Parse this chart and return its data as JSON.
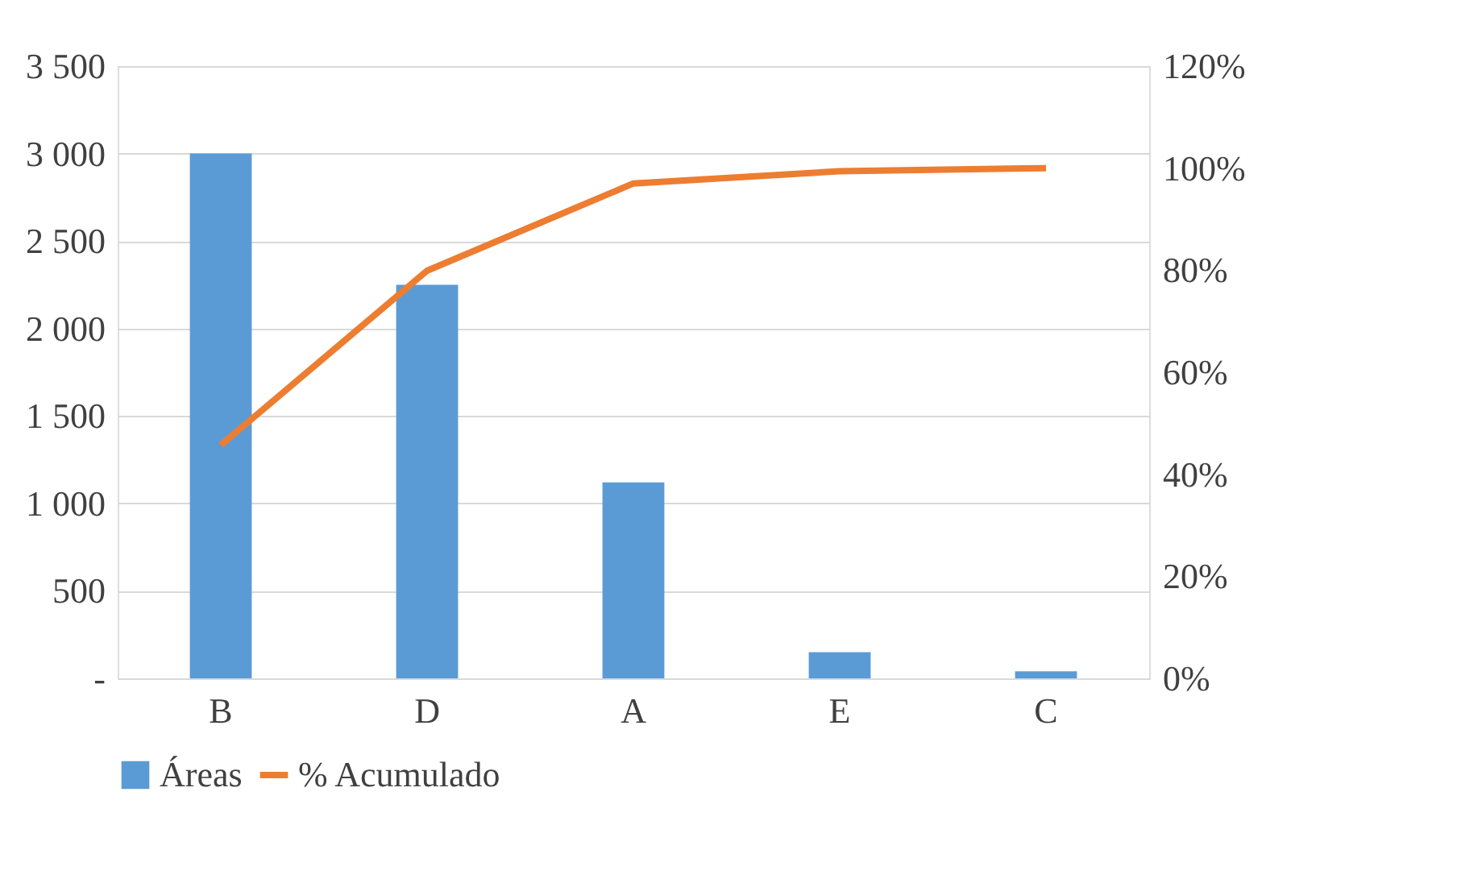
{
  "chart_data": {
    "type": "bar",
    "categories": [
      "B",
      "D",
      "A",
      "E",
      "C"
    ],
    "series": [
      {
        "name": "Áreas",
        "color": "#5b9bd5",
        "values": [
          3000,
          2250,
          1120,
          150,
          40
        ]
      },
      {
        "name": "% Acumulado",
        "type": "line",
        "axis": "y2",
        "color": "#ed7d31",
        "values": [
          45.7,
          79.9,
          97,
          99.4,
          100
        ]
      }
    ],
    "ylim": [
      0,
      3500
    ],
    "yticks": [
      {
        "value": 0,
        "label": "-"
      },
      {
        "value": 500,
        "label": "500"
      },
      {
        "value": 1000,
        "label": "1 000"
      },
      {
        "value": 1500,
        "label": "1 500"
      },
      {
        "value": 2000,
        "label": "2 000"
      },
      {
        "value": 2500,
        "label": "2 500"
      },
      {
        "value": 3000,
        "label": "3 000"
      },
      {
        "value": 3500,
        "label": "3 500"
      }
    ],
    "y2lim": [
      0,
      120
    ],
    "y2ticks": [
      {
        "value": 0,
        "label": "0%"
      },
      {
        "value": 20,
        "label": "20%"
      },
      {
        "value": 40,
        "label": "40%"
      },
      {
        "value": 60,
        "label": "60%"
      },
      {
        "value": 80,
        "label": "80%"
      },
      {
        "value": 100,
        "label": "100%"
      },
      {
        "value": 120,
        "label": "120%"
      }
    ],
    "grid": "y",
    "legend": "bottom",
    "marker": "none",
    "line_style": "solid"
  }
}
